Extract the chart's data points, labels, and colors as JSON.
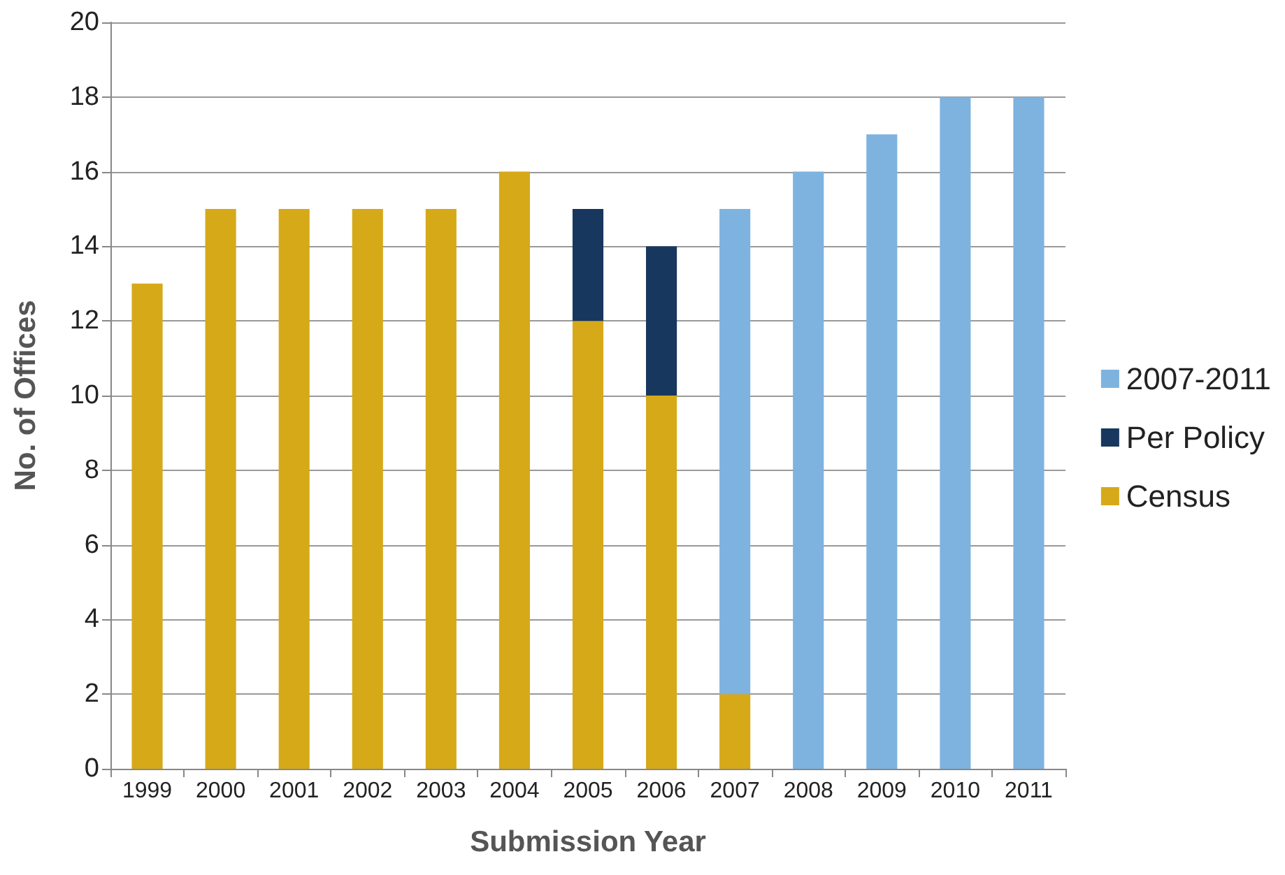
{
  "chart_data": {
    "type": "bar",
    "stacked": true,
    "xlabel": "Submission Year",
    "ylabel": "No. of Offices",
    "categories": [
      "1999",
      "2000",
      "2001",
      "2002",
      "2003",
      "2004",
      "2005",
      "2006",
      "2007",
      "2008",
      "2009",
      "2010",
      "2011"
    ],
    "series": [
      {
        "name": "Census",
        "color": "#d6a919",
        "values": [
          13,
          15,
          15,
          15,
          15,
          16,
          12,
          10,
          2,
          null,
          null,
          null,
          null
        ]
      },
      {
        "name": "Per Policy",
        "color": "#17375e",
        "values": [
          null,
          null,
          null,
          null,
          null,
          null,
          3,
          4,
          null,
          null,
          null,
          null,
          null
        ]
      },
      {
        "name": "2007-2011",
        "color": "#7eb3e0",
        "values": [
          null,
          null,
          null,
          null,
          null,
          null,
          null,
          null,
          13,
          16,
          17,
          18,
          18
        ]
      }
    ],
    "ylim": [
      0,
      20
    ],
    "yticks": [
      0,
      2,
      4,
      6,
      8,
      10,
      12,
      14,
      16,
      18,
      20
    ],
    "grid": "y",
    "legend": "right"
  }
}
